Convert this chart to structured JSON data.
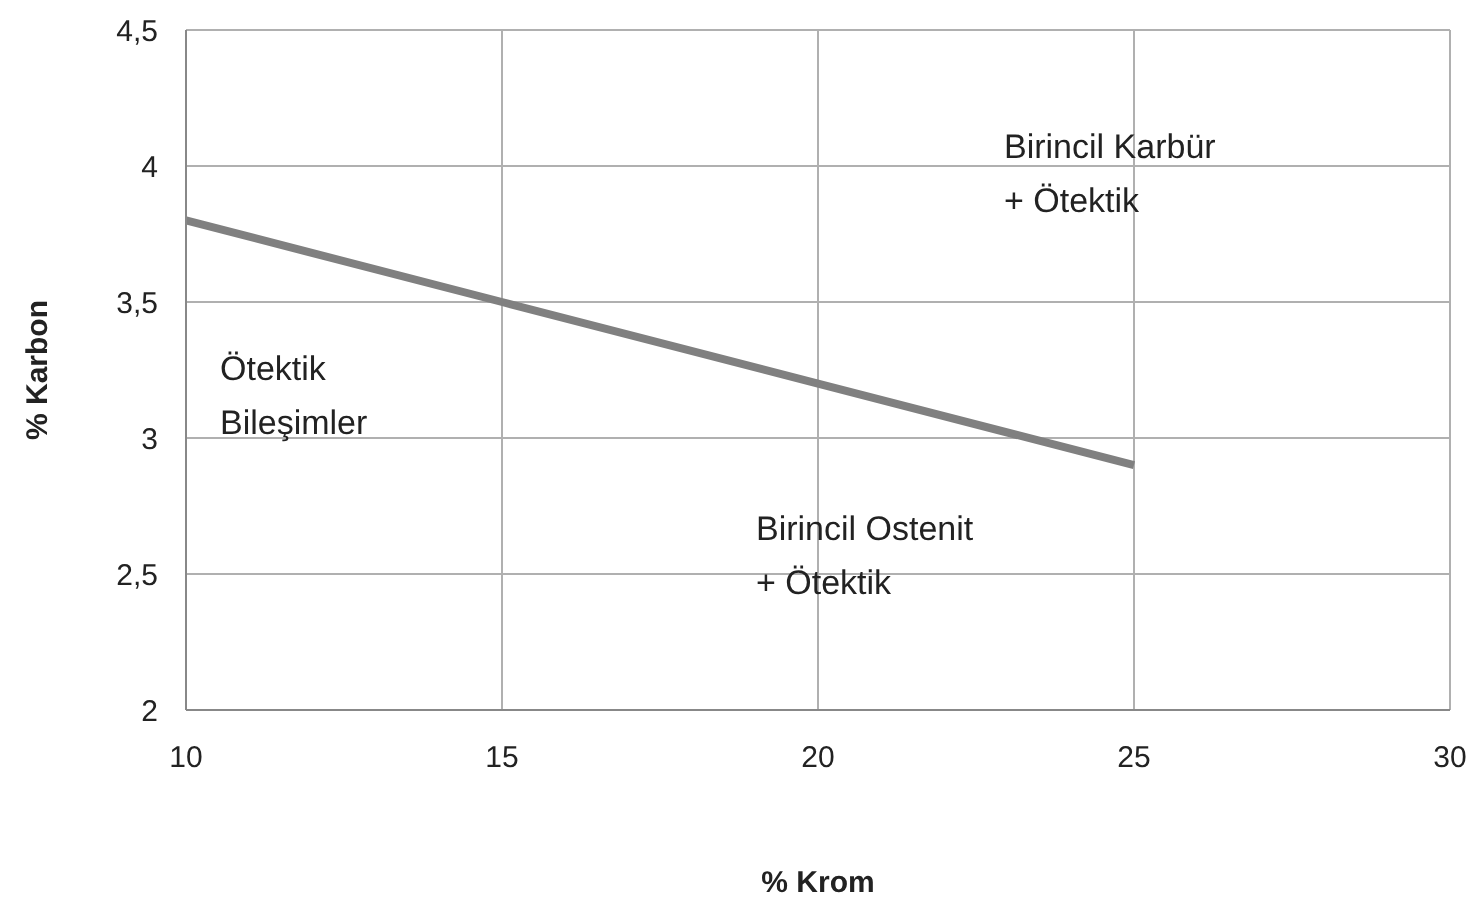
{
  "chart_data": {
    "type": "line",
    "xlabel": "% Krom",
    "ylabel": "% Karbon",
    "x": [
      10,
      15,
      20,
      25
    ],
    "series": [
      {
        "color": "#808080",
        "values": [
          3.8,
          3.5,
          3.2,
          2.9
        ]
      }
    ],
    "xlim": [
      10,
      30
    ],
    "xticks": [
      10,
      15,
      20,
      25,
      30
    ],
    "ylim": [
      2,
      4.5
    ],
    "yticks": [
      2,
      {
        "value": 2.5,
        "label": "2,5"
      },
      3,
      {
        "value": 3.5,
        "label": "3,5"
      },
      4,
      {
        "value": 4.5,
        "label": "4,5"
      }
    ],
    "grid": true,
    "marker": "none",
    "line_style": "solid",
    "annotations": [
      "Birincil Karbür\n+ Ötektik",
      "Ötektik\nBileşimler",
      "Birincil Ostenit\n+ Ötektik"
    ]
  }
}
